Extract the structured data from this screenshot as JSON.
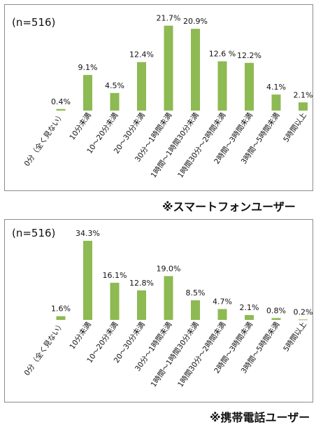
{
  "charts": [
    {
      "caption": "※スマートフォンユーザー",
      "chart_data": {
        "type": "bar",
        "sample_label": "(n=516)",
        "categories": [
          "0分（全く見ない）",
          "10分未満",
          "10～20分未満",
          "20～30分未満",
          "30分～1時間未満",
          "1時間～1時間30分未満",
          "1時間30分～2時間未満",
          "2時間～3時間未満",
          "3時間～5時間未満",
          "5時間以上"
        ],
        "values": [
          0.4,
          9.1,
          4.5,
          12.4,
          21.7,
          20.9,
          12.6,
          12.2,
          4.1,
          2.1
        ],
        "value_labels": [
          "0.4%",
          "9.1%",
          "4.5%",
          "12.4%",
          "21.7%",
          "20.9%",
          "12.6 %",
          "12.2%",
          "4.1%",
          "2.1%"
        ],
        "unit": "%",
        "ylim": [
          0,
          22
        ],
        "grid": false,
        "bar_color": "#8dba52"
      }
    },
    {
      "caption": "※携帯電話ユーザー",
      "chart_data": {
        "type": "bar",
        "sample_label": "(n=516)",
        "categories": [
          "0分（全く見ない）",
          "10分未満",
          "10～20分未満",
          "20～30分未満",
          "30分～1時間未満",
          "1時間～1時間30分未満",
          "1時間30分～2時間未満",
          "2時間～3時間未満",
          "3時間～5時間未満",
          "5時間以上"
        ],
        "values": [
          1.6,
          34.3,
          16.1,
          12.8,
          19.0,
          8.5,
          4.7,
          2.1,
          0.8,
          0.2
        ],
        "value_labels": [
          "1.6%",
          "34.3%",
          "16.1%",
          "12.8%",
          "19.0%",
          "8.5%",
          "4.7%",
          "2.1%",
          "0.8%",
          "0.2%"
        ],
        "unit": "%",
        "ylim": [
          0,
          34.3
        ],
        "grid": false,
        "bar_color": "#8dba52"
      }
    }
  ]
}
